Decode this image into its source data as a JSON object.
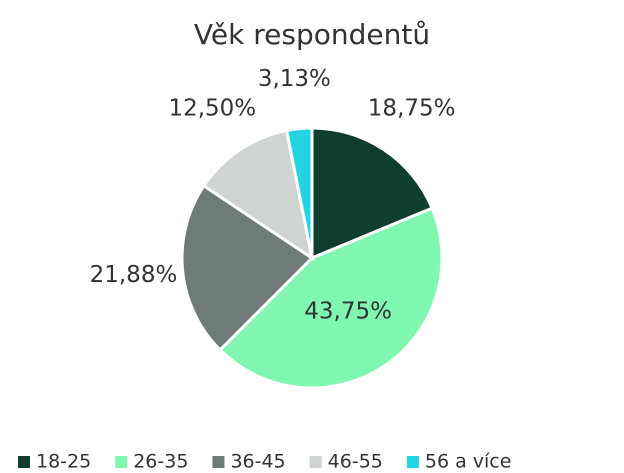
{
  "chart_data": {
    "type": "pie",
    "title": "Věk respondentů",
    "categories": [
      "18-25",
      "26-35",
      "36-45",
      "46-55",
      "56 a více"
    ],
    "values": [
      18.75,
      43.75,
      21.88,
      12.5,
      3.13
    ],
    "value_labels": [
      "18,75%",
      "43,75%",
      "21,88%",
      "12,50%",
      "3,13%"
    ],
    "colors": [
      "#0f3d2f",
      "#80f7b1",
      "#6f7b79",
      "#cfd3d2",
      "#24d3e2"
    ],
    "legend": "bottom"
  }
}
